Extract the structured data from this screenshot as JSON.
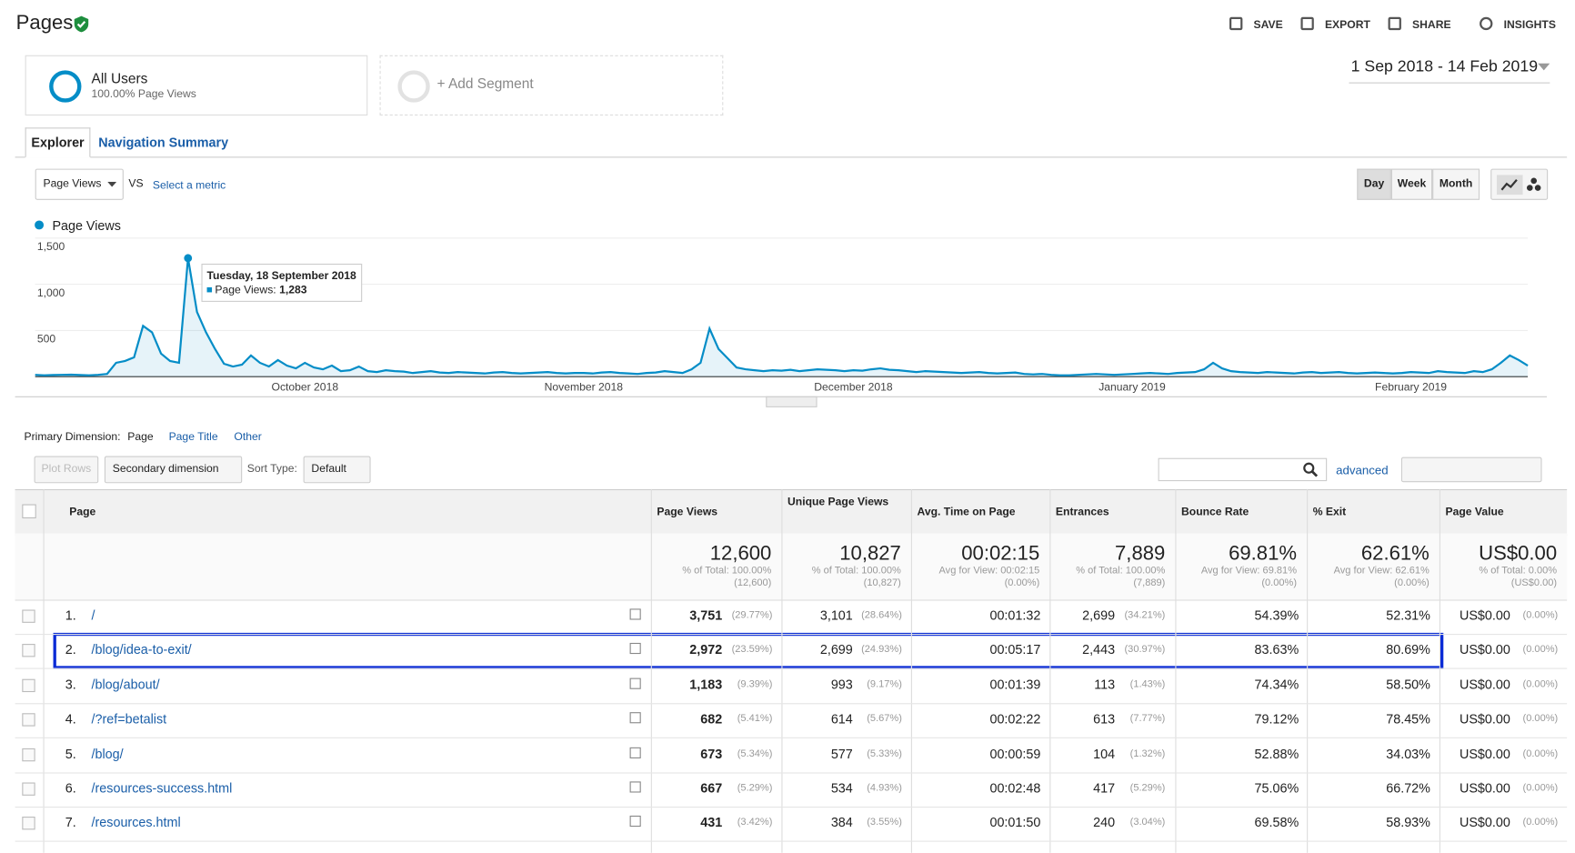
{
  "header": {
    "title": "Pages",
    "actions": [
      "SAVE",
      "EXPORT",
      "SHARE",
      "INSIGHTS"
    ],
    "date_range": "1 Sep 2018 - 14 Feb 2019"
  },
  "segments": {
    "active": {
      "name": "All Users",
      "detail": "100.00% Page Views"
    },
    "add": "+ Add Segment"
  },
  "tabs": [
    "Explorer",
    "Navigation Summary"
  ],
  "metric_controls": {
    "metric": "Page Views",
    "vs": "VS",
    "select": "Select a metric",
    "periods": [
      "Day",
      "Week",
      "Month"
    ]
  },
  "chart_data": {
    "type": "line",
    "series_name": "Page Views",
    "color": "#058dc7",
    "values": [
      20,
      15,
      18,
      20,
      22,
      18,
      15,
      20,
      30,
      150,
      170,
      210,
      550,
      480,
      250,
      170,
      150,
      1283,
      700,
      480,
      300,
      140,
      110,
      130,
      230,
      150,
      110,
      180,
      120,
      90,
      150,
      100,
      80,
      120,
      60,
      70,
      110,
      60,
      50,
      70,
      60,
      55,
      40,
      50,
      60,
      45,
      40,
      50,
      45,
      40,
      35,
      45,
      50,
      40,
      35,
      40,
      45,
      50,
      40,
      35,
      40,
      40,
      35,
      45,
      50,
      40,
      35,
      30,
      40,
      45,
      60,
      50,
      40,
      80,
      150,
      520,
      300,
      200,
      100,
      80,
      70,
      60,
      70,
      65,
      75,
      60,
      70,
      80,
      75,
      70,
      60,
      70,
      65,
      80,
      90,
      75,
      70,
      60,
      50,
      60,
      55,
      50,
      45,
      40,
      45,
      50,
      40,
      35,
      40,
      45,
      30,
      25,
      30,
      20,
      15,
      15,
      20,
      25,
      30,
      25,
      20,
      25,
      30,
      35,
      40,
      35,
      30,
      40,
      45,
      50,
      80,
      150,
      90,
      60,
      50,
      45,
      40,
      50,
      45,
      40,
      35,
      45,
      50,
      40,
      45,
      50,
      40,
      35,
      40,
      45,
      40,
      35,
      40,
      50,
      45,
      40,
      60,
      50,
      45,
      40,
      60,
      50,
      80,
      150,
      230,
      180,
      120
    ],
    "xlim": [
      0,
      166
    ],
    "xticks": [
      {
        "value": 30,
        "label": "October 2018"
      },
      {
        "value": 61,
        "label": "November 2018"
      },
      {
        "value": 91,
        "label": "December 2018"
      },
      {
        "value": 122,
        "label": "January 2019"
      },
      {
        "value": 153,
        "label": "February 2019"
      }
    ],
    "ylim": [
      0,
      1500
    ],
    "yticks": [
      500,
      {
        "value": 1000,
        "label": "1,000"
      },
      {
        "value": 1500,
        "label": "1,500"
      }
    ],
    "grid": true,
    "tooltip": {
      "index": 17,
      "title": "Tuesday, 18 September 2018",
      "metric": "Page Views:",
      "value": "1,283"
    }
  },
  "dimension": {
    "label": "Primary Dimension:",
    "options": [
      "Page",
      "Page Title",
      "Other"
    ]
  },
  "table_controls": {
    "plot_rows": "Plot Rows",
    "secondary": "Secondary dimension",
    "sort_label": "Sort Type:",
    "sort": "Default",
    "advanced": "advanced"
  },
  "table": {
    "columns": [
      "Page",
      "Page Views",
      "Unique Page Views",
      "Avg. Time on Page",
      "Entrances",
      "Bounce Rate",
      "% Exit",
      "Page Value"
    ],
    "totals": [
      [
        "12,600",
        "% of Total: 100.00%",
        "(12,600)"
      ],
      [
        "10,827",
        "% of Total: 100.00%",
        "(10,827)"
      ],
      [
        "00:02:15",
        "Avg for View: 00:02:15",
        "(0.00%)"
      ],
      [
        "7,889",
        "% of Total: 100.00%",
        "(7,889)"
      ],
      [
        "69.81%",
        "Avg for View: 69.81%",
        "(0.00%)"
      ],
      [
        "62.61%",
        "Avg for View: 62.61%",
        "(0.00%)"
      ],
      [
        "US$0.00",
        "% of Total: 0.00%",
        "(US$0.00)"
      ]
    ],
    "rows": [
      [
        "1.",
        "/",
        "3,751",
        "(29.77%)",
        "3,101",
        "(28.64%)",
        "00:01:32",
        "2,699",
        "(34.21%)",
        "54.39%",
        "52.31%",
        "US$0.00",
        "(0.00%)"
      ],
      [
        "2.",
        "/blog/idea-to-exit/",
        "2,972",
        "(23.59%)",
        "2,699",
        "(24.93%)",
        "00:05:17",
        "2,443",
        "(30.97%)",
        "83.63%",
        "80.69%",
        "US$0.00",
        "(0.00%)"
      ],
      [
        "3.",
        "/blog/about/",
        "1,183",
        "(9.39%)",
        "993",
        "(9.17%)",
        "00:01:39",
        "113",
        "(1.43%)",
        "74.34%",
        "58.50%",
        "US$0.00",
        "(0.00%)"
      ],
      [
        "4.",
        "/?ref=betalist",
        "682",
        "(5.41%)",
        "614",
        "(5.67%)",
        "00:02:22",
        "613",
        "(7.77%)",
        "79.12%",
        "78.45%",
        "US$0.00",
        "(0.00%)"
      ],
      [
        "5.",
        "/blog/",
        "673",
        "(5.34%)",
        "577",
        "(5.33%)",
        "00:00:59",
        "104",
        "(1.32%)",
        "52.88%",
        "34.03%",
        "US$0.00",
        "(0.00%)"
      ],
      [
        "6.",
        "/resources-success.html",
        "667",
        "(5.29%)",
        "534",
        "(4.93%)",
        "00:02:48",
        "417",
        "(5.29%)",
        "75.06%",
        "66.72%",
        "US$0.00",
        "(0.00%)"
      ],
      [
        "7.",
        "/resources.html",
        "431",
        "(3.42%)",
        "384",
        "(3.55%)",
        "00:01:50",
        "240",
        "(3.04%)",
        "69.58%",
        "58.93%",
        "US$0.00",
        "(0.00%)"
      ]
    ]
  }
}
